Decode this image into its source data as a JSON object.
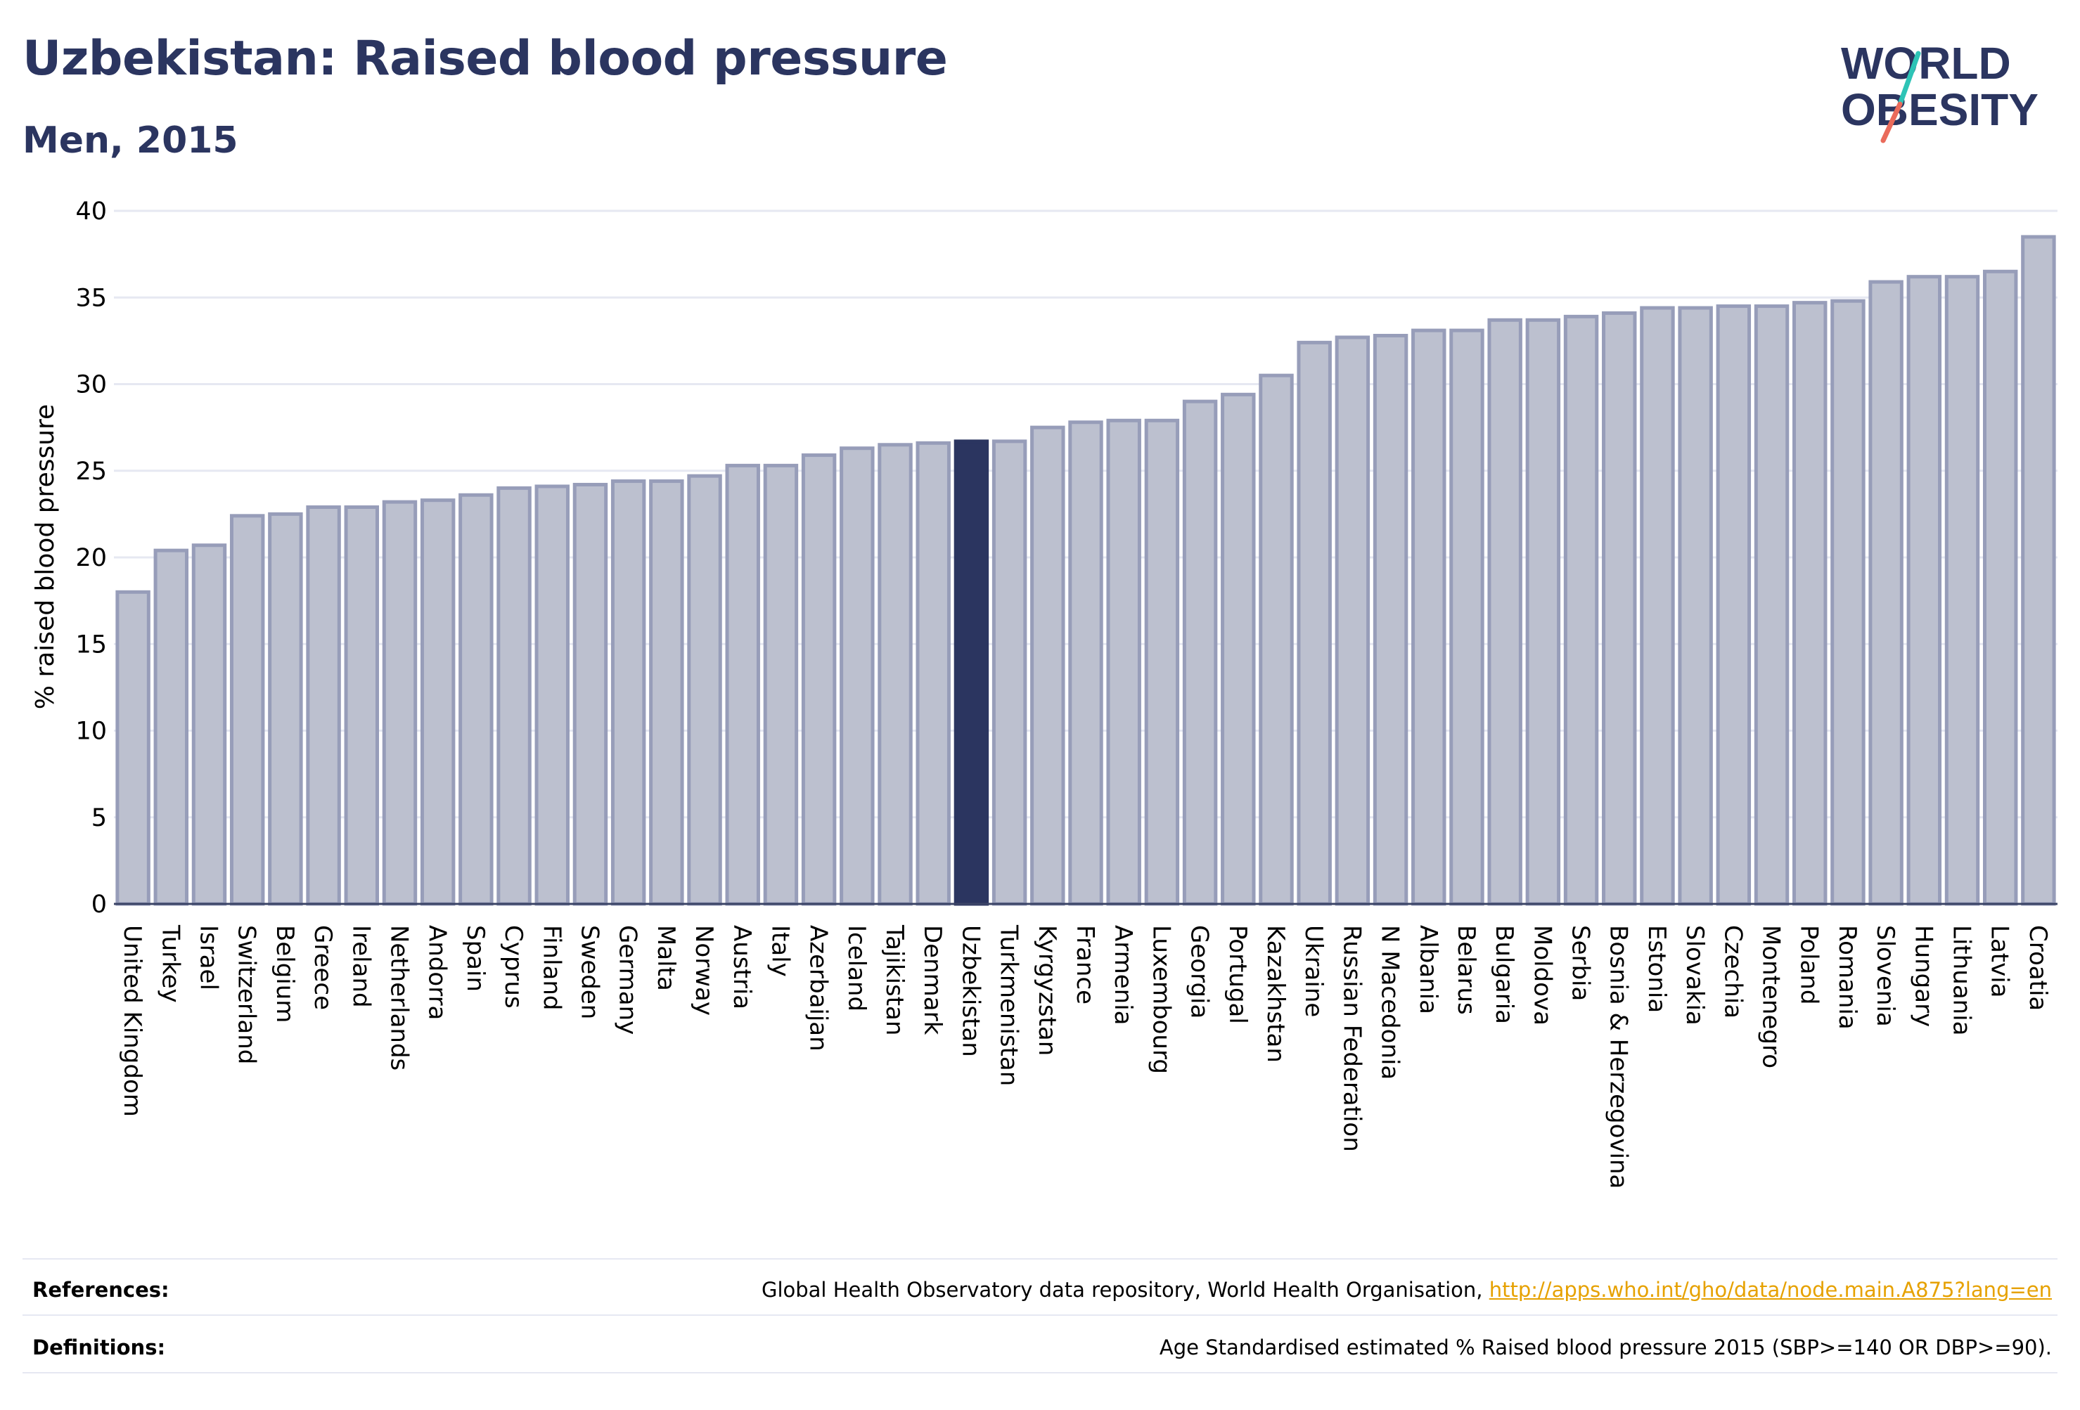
{
  "title": "Uzbekistan: Raised blood pressure",
  "subtitle": "Men, 2015",
  "logo": {
    "line1": "WORLD",
    "line2": "OBESITY"
  },
  "colors": {
    "title": "#2b3560",
    "bar_fill": "#bcc0cf",
    "bar_stroke": "#979db9",
    "highlight": "#2b3560",
    "grid": "#e6e8f2",
    "link": "#e6a100",
    "logo_text": "#2b3560",
    "logo_slash_top": "#2ec4b6",
    "logo_slash_bottom": "#ea6b5b"
  },
  "chart_data": {
    "type": "bar",
    "ylabel": "% raised blood pressure",
    "ylim": [
      0,
      40
    ],
    "yticks": [
      0,
      5,
      10,
      15,
      20,
      25,
      30,
      35,
      40
    ],
    "highlight": "Uzbekistan",
    "categories": [
      "United Kingdom",
      "Turkey",
      "Israel",
      "Switzerland",
      "Belgium",
      "Greece",
      "Ireland",
      "Netherlands",
      "Andorra",
      "Spain",
      "Cyprus",
      "Finland",
      "Sweden",
      "Germany",
      "Malta",
      "Norway",
      "Austria",
      "Italy",
      "Azerbaijan",
      "Iceland",
      "Tajikistan",
      "Denmark",
      "Uzbekistan",
      "Turkmenistan",
      "Kyrgyzstan",
      "France",
      "Armenia",
      "Luxembourg",
      "Georgia",
      "Portugal",
      "Kazakhstan",
      "Ukraine",
      "Russian Federation",
      "N Macedonia",
      "Albania",
      "Belarus",
      "Bulgaria",
      "Moldova",
      "Serbia",
      "Bosnia & Herzegovina",
      "Estonia",
      "Slovakia",
      "Czechia",
      "Montenegro",
      "Poland",
      "Romania",
      "Slovenia",
      "Hungary",
      "Lithuania",
      "Latvia",
      "Croatia"
    ],
    "values": [
      18.0,
      20.4,
      20.7,
      22.4,
      22.5,
      22.9,
      22.9,
      23.2,
      23.3,
      23.6,
      24.0,
      24.1,
      24.2,
      24.4,
      24.4,
      24.7,
      25.3,
      25.3,
      25.9,
      26.3,
      26.5,
      26.6,
      26.7,
      26.7,
      27.5,
      27.8,
      27.9,
      27.9,
      29.0,
      29.4,
      30.5,
      32.4,
      32.7,
      32.8,
      33.1,
      33.1,
      33.7,
      33.7,
      33.9,
      34.1,
      34.4,
      34.4,
      34.5,
      34.5,
      34.7,
      34.8,
      35.9,
      36.2,
      36.2,
      36.5,
      38.5
    ]
  },
  "footer": {
    "references_label": "References:",
    "references_text": "Global Health Observatory data repository, World Health Organisation, ",
    "references_link": "http://apps.who.int/gho/data/node.main.A875?lang=en",
    "definitions_label": "Definitions:",
    "definitions_text": "Age Standardised estimated % Raised blood pressure 2015 (SBP>=140 OR DBP>=90)."
  }
}
